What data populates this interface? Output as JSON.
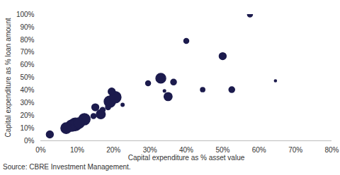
{
  "chart_data": {
    "type": "scatter",
    "xlabel": "Capital expenditure as % asset value",
    "ylabel": "Capital expenditure as % loan amount",
    "caption": "Source: CBRE Investment Management.",
    "color": "#1c1b4d",
    "marker": "circle",
    "grid": false,
    "x": [
      2.5,
      7,
      8.5,
      9.5,
      10.5,
      12,
      14.5,
      15,
      16.5,
      17,
      18.5,
      19,
      19.5,
      20.5,
      22.5,
      29.5,
      33,
      34,
      35,
      36.5,
      40,
      44.5,
      50,
      52.5,
      57.5,
      64.5
    ],
    "values": [
      5,
      10,
      12,
      13,
      14,
      17,
      19.5,
      26.5,
      21,
      24.5,
      26.5,
      31,
      39,
      34.5,
      28.5,
      45.5,
      49.5,
      39.5,
      35,
      46.5,
      79,
      40.5,
      67,
      40.5,
      100,
      47.5
    ],
    "sizes": [
      3,
      7,
      8,
      10,
      7,
      8,
      1.5,
      3,
      5,
      1.5,
      1.5,
      8,
      3,
      8,
      0.6,
      1.5,
      6,
      0.4,
      4,
      2,
      1.5,
      1.2,
      3,
      2,
      1.5,
      0.3
    ],
    "xlim": [
      0,
      80
    ],
    "xticks": [
      {
        "value": 0,
        "label": "0%"
      },
      {
        "value": 10,
        "label": "10%"
      },
      {
        "value": 20,
        "label": "20%"
      },
      {
        "value": 30,
        "label": "30%"
      },
      {
        "value": 40,
        "label": "40%"
      },
      {
        "value": 50,
        "label": "50%"
      },
      {
        "value": 60,
        "label": "60%"
      },
      {
        "value": 70,
        "label": "70%"
      },
      {
        "value": 80,
        "label": "80%"
      }
    ],
    "ylim": [
      0,
      100
    ],
    "yticks": [
      {
        "value": 0,
        "label": "0%"
      },
      {
        "value": 10,
        "label": "10%"
      },
      {
        "value": 20,
        "label": "20%"
      },
      {
        "value": 30,
        "label": "30%"
      },
      {
        "value": 40,
        "label": "40%"
      },
      {
        "value": 50,
        "label": "50%"
      },
      {
        "value": 60,
        "label": "60%"
      },
      {
        "value": 70,
        "label": "70%"
      },
      {
        "value": 80,
        "label": "80%"
      },
      {
        "value": 90,
        "label": "90%"
      },
      {
        "value": 100,
        "label": "100%"
      }
    ]
  }
}
